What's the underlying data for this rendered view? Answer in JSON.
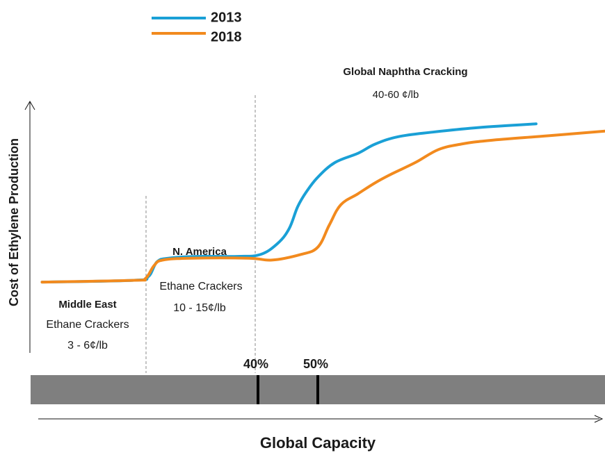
{
  "chart_data": {
    "type": "line",
    "title": "",
    "xlabel": "Global Capacity",
    "ylabel": "Cost of Ethylene Production",
    "legend": {
      "placement": "top-left"
    },
    "grid": false,
    "series": [
      {
        "name": "2013",
        "color": "#1aa0d6",
        "note": "values in relative units; x: 0 = left edge of capacity band, 100 = right edge",
        "points": [
          [
            2,
            9
          ],
          [
            18,
            10
          ],
          [
            20.5,
            12
          ],
          [
            22,
            20
          ],
          [
            24,
            22
          ],
          [
            29,
            23
          ],
          [
            36,
            23
          ],
          [
            40,
            24
          ],
          [
            43,
            30
          ],
          [
            45,
            38
          ],
          [
            46.5,
            50
          ],
          [
            48,
            58
          ],
          [
            50,
            66
          ],
          [
            53,
            74
          ],
          [
            57,
            79
          ],
          [
            60,
            84
          ],
          [
            64,
            88
          ],
          [
            70,
            90.5
          ],
          [
            78,
            93
          ],
          [
            88,
            95
          ]
        ]
      },
      {
        "name": "2018",
        "color": "#f28a1e",
        "points": [
          [
            2,
            9
          ],
          [
            18,
            10
          ],
          [
            20,
            11
          ],
          [
            21.5,
            18
          ],
          [
            23,
            21
          ],
          [
            28,
            22
          ],
          [
            38,
            22
          ],
          [
            42,
            21
          ],
          [
            47,
            24
          ],
          [
            50,
            28
          ],
          [
            52,
            40
          ],
          [
            54,
            51
          ],
          [
            57,
            57
          ],
          [
            60,
            63
          ],
          [
            63,
            68
          ],
          [
            67,
            74
          ],
          [
            71,
            81
          ],
          [
            75,
            84
          ],
          [
            80,
            86
          ],
          [
            90,
            88.5
          ],
          [
            100,
            91
          ]
        ]
      }
    ],
    "regions": [
      {
        "name": "Middle East",
        "technology": "Ethane Crackers",
        "cost": "3 - 6¢/lb"
      },
      {
        "name": "N. America",
        "technology": "Ethane Crackers",
        "cost": "10 - 15¢/lb"
      },
      {
        "name": "Global Naphtha Cracking",
        "cost": "40-60 ¢/lb"
      }
    ],
    "capacity_markers": [
      {
        "label": "40%",
        "value": 40
      },
      {
        "label": "50%",
        "value": 50
      }
    ],
    "region_dividers": [
      {
        "value": 19
      },
      {
        "value": 38
      }
    ]
  }
}
